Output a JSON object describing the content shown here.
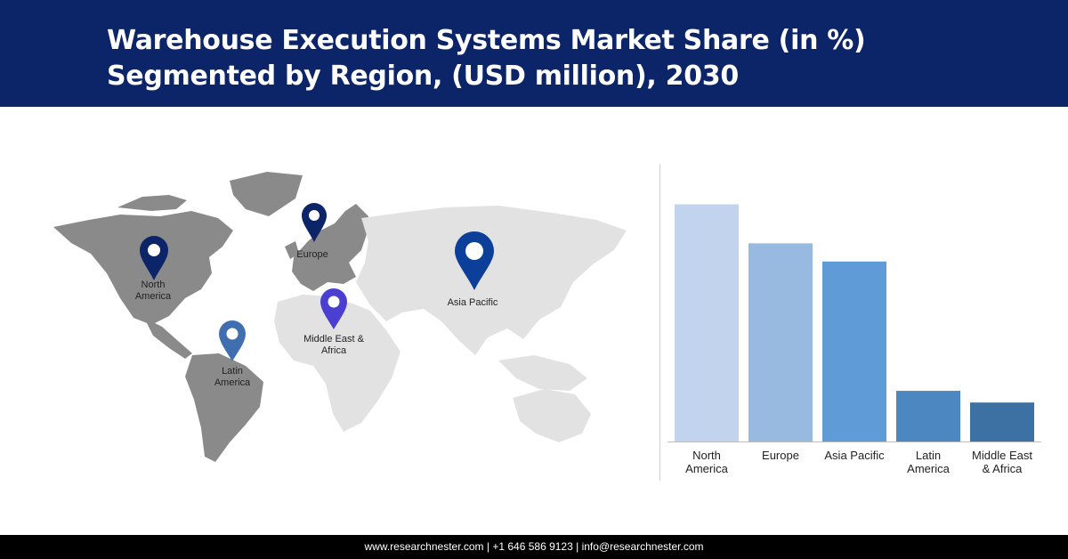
{
  "header": {
    "title_line1": "Warehouse Execution Systems Market Share (in %)",
    "title_line2": "Segmented by Region, (USD million), 2030",
    "background": "#0c2468"
  },
  "map": {
    "land_color_highlight": "#8a8a8a",
    "land_color_muted": "#e2e2e2",
    "pins": [
      {
        "label_line1": "North",
        "label_line2": "America",
        "color": "#0c2468",
        "icon": "location-pin-icon"
      },
      {
        "label_line1": "Europe",
        "label_line2": "",
        "color": "#0c2468",
        "icon": "location-pin-icon"
      },
      {
        "label_line1": "Asia Pacific",
        "label_line2": "",
        "color": "#0c3f99",
        "icon": "location-pin-icon"
      },
      {
        "label_line1": "Middle East &",
        "label_line2": "Africa",
        "color": "#4a3fd1",
        "icon": "location-pin-icon"
      },
      {
        "label_line1": "Latin",
        "label_line2": "America",
        "color": "#3f6fb0",
        "icon": "location-pin-icon"
      }
    ]
  },
  "chart_data": {
    "type": "bar",
    "title": "",
    "xlabel": "",
    "ylabel": "",
    "categories": [
      [
        "North",
        "America"
      ],
      [
        "Europe"
      ],
      [
        "Asia Pacific"
      ],
      [
        "Latin",
        "America"
      ],
      [
        "Middle East",
        "& Africa"
      ]
    ],
    "values": [
      36.5,
      30.5,
      27.7,
      7.8,
      6.0
    ],
    "ylim": [
      0,
      40
    ],
    "colors": [
      "#c1d3ed",
      "#98b9e0",
      "#5e9bd7",
      "#4d87c2",
      "#3e71a3"
    ],
    "grid": false,
    "legend": "none"
  },
  "footer": {
    "website": "www.researchnester.com",
    "sep1": " | ",
    "phone": "+1 646 586 9123",
    "sep2": " | ",
    "email": "info@researchnester.com"
  }
}
